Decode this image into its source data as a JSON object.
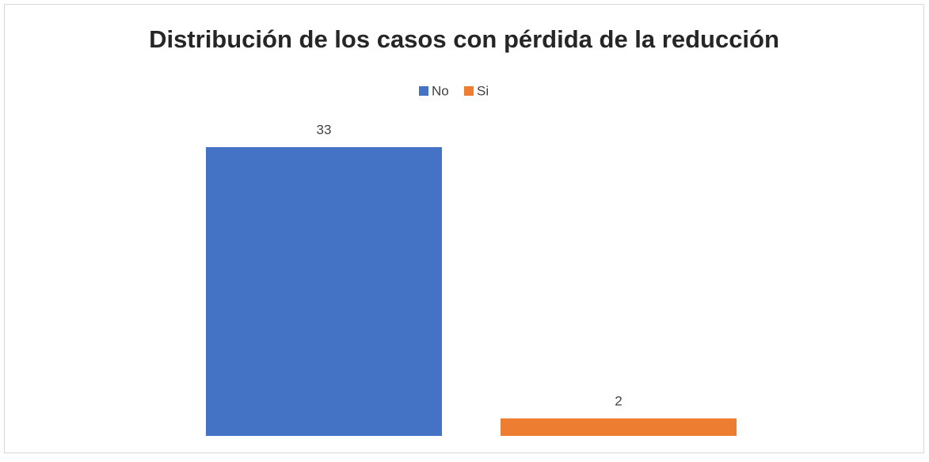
{
  "chart_data": {
    "type": "bar",
    "title": "Distribución de los casos con pérdida de la reducción",
    "categories": [
      null
    ],
    "series": [
      {
        "name": "No",
        "color": "#4472c4",
        "values": [
          33
        ]
      },
      {
        "name": "Si",
        "color": "#ed7d31",
        "values": [
          2
        ]
      }
    ],
    "data_labels": true,
    "legend": "top"
  }
}
